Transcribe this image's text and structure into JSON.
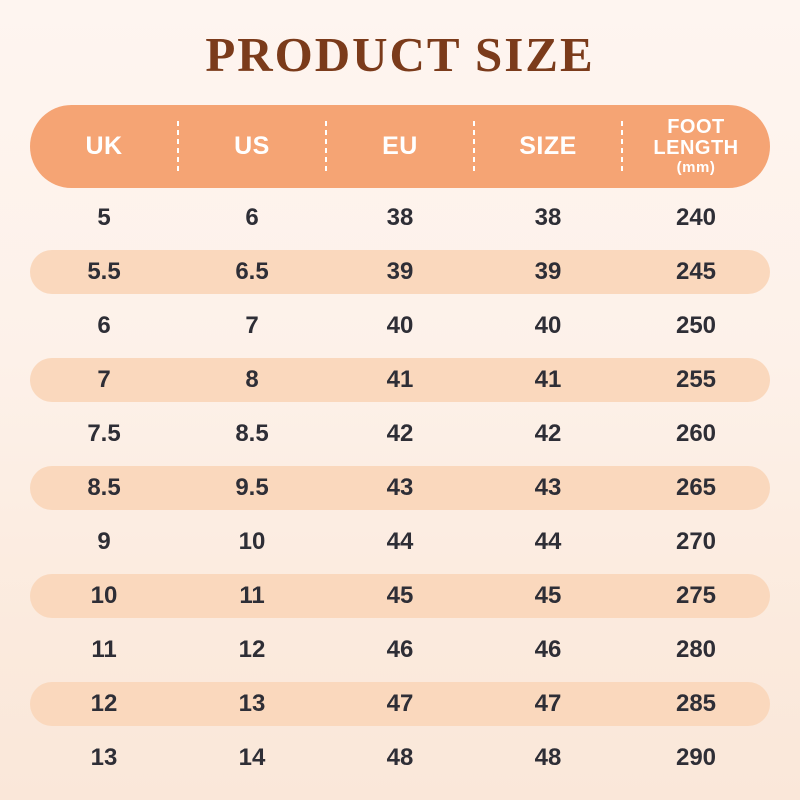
{
  "title": "PRODUCT SIZE",
  "table": {
    "columns": [
      {
        "label": "UK"
      },
      {
        "label": "US"
      },
      {
        "label": "EU"
      },
      {
        "label": "SIZE"
      },
      {
        "label": "FOOT LENGTH",
        "sublabel": "(mm)"
      }
    ],
    "rows": [
      [
        "5",
        "6",
        "38",
        "38",
        "240"
      ],
      [
        "5.5",
        "6.5",
        "39",
        "39",
        "245"
      ],
      [
        "6",
        "7",
        "40",
        "40",
        "250"
      ],
      [
        "7",
        "8",
        "41",
        "41",
        "255"
      ],
      [
        "7.5",
        "8.5",
        "42",
        "42",
        "260"
      ],
      [
        "8.5",
        "9.5",
        "43",
        "43",
        "265"
      ],
      [
        "9",
        "10",
        "44",
        "44",
        "270"
      ],
      [
        "10",
        "11",
        "45",
        "45",
        "275"
      ],
      [
        "11",
        "12",
        "46",
        "46",
        "280"
      ],
      [
        "12",
        "13",
        "47",
        "47",
        "285"
      ],
      [
        "13",
        "14",
        "48",
        "48",
        "290"
      ]
    ]
  },
  "colors": {
    "page_bg_top": "#FEF5F0",
    "page_bg_bottom": "#FAE7D9",
    "header_bg": "#F5A474",
    "header_text": "#FFFFFF",
    "row_alt_bg": "#FAD8BD",
    "cell_text": "#2E2E36",
    "title_text": "#7B3B1B",
    "divider": "#FFFFFF"
  },
  "chart_data": {
    "type": "table",
    "title": "PRODUCT SIZE",
    "columns": [
      "UK",
      "US",
      "EU",
      "SIZE",
      "FOOT LENGTH (mm)"
    ],
    "rows": [
      [
        5,
        6,
        38,
        38,
        240
      ],
      [
        5.5,
        6.5,
        39,
        39,
        245
      ],
      [
        6,
        7,
        40,
        40,
        250
      ],
      [
        7,
        8,
        41,
        41,
        255
      ],
      [
        7.5,
        8.5,
        42,
        42,
        260
      ],
      [
        8.5,
        9.5,
        43,
        43,
        265
      ],
      [
        9,
        10,
        44,
        44,
        270
      ],
      [
        10,
        11,
        45,
        45,
        275
      ],
      [
        11,
        12,
        46,
        46,
        280
      ],
      [
        12,
        13,
        47,
        47,
        285
      ],
      [
        13,
        14,
        48,
        48,
        290
      ]
    ],
    "layout": {
      "header_style": "orange pill with white dashed column dividers",
      "row_style": "alternating transparent and peach pill rows",
      "grid": false
    }
  }
}
